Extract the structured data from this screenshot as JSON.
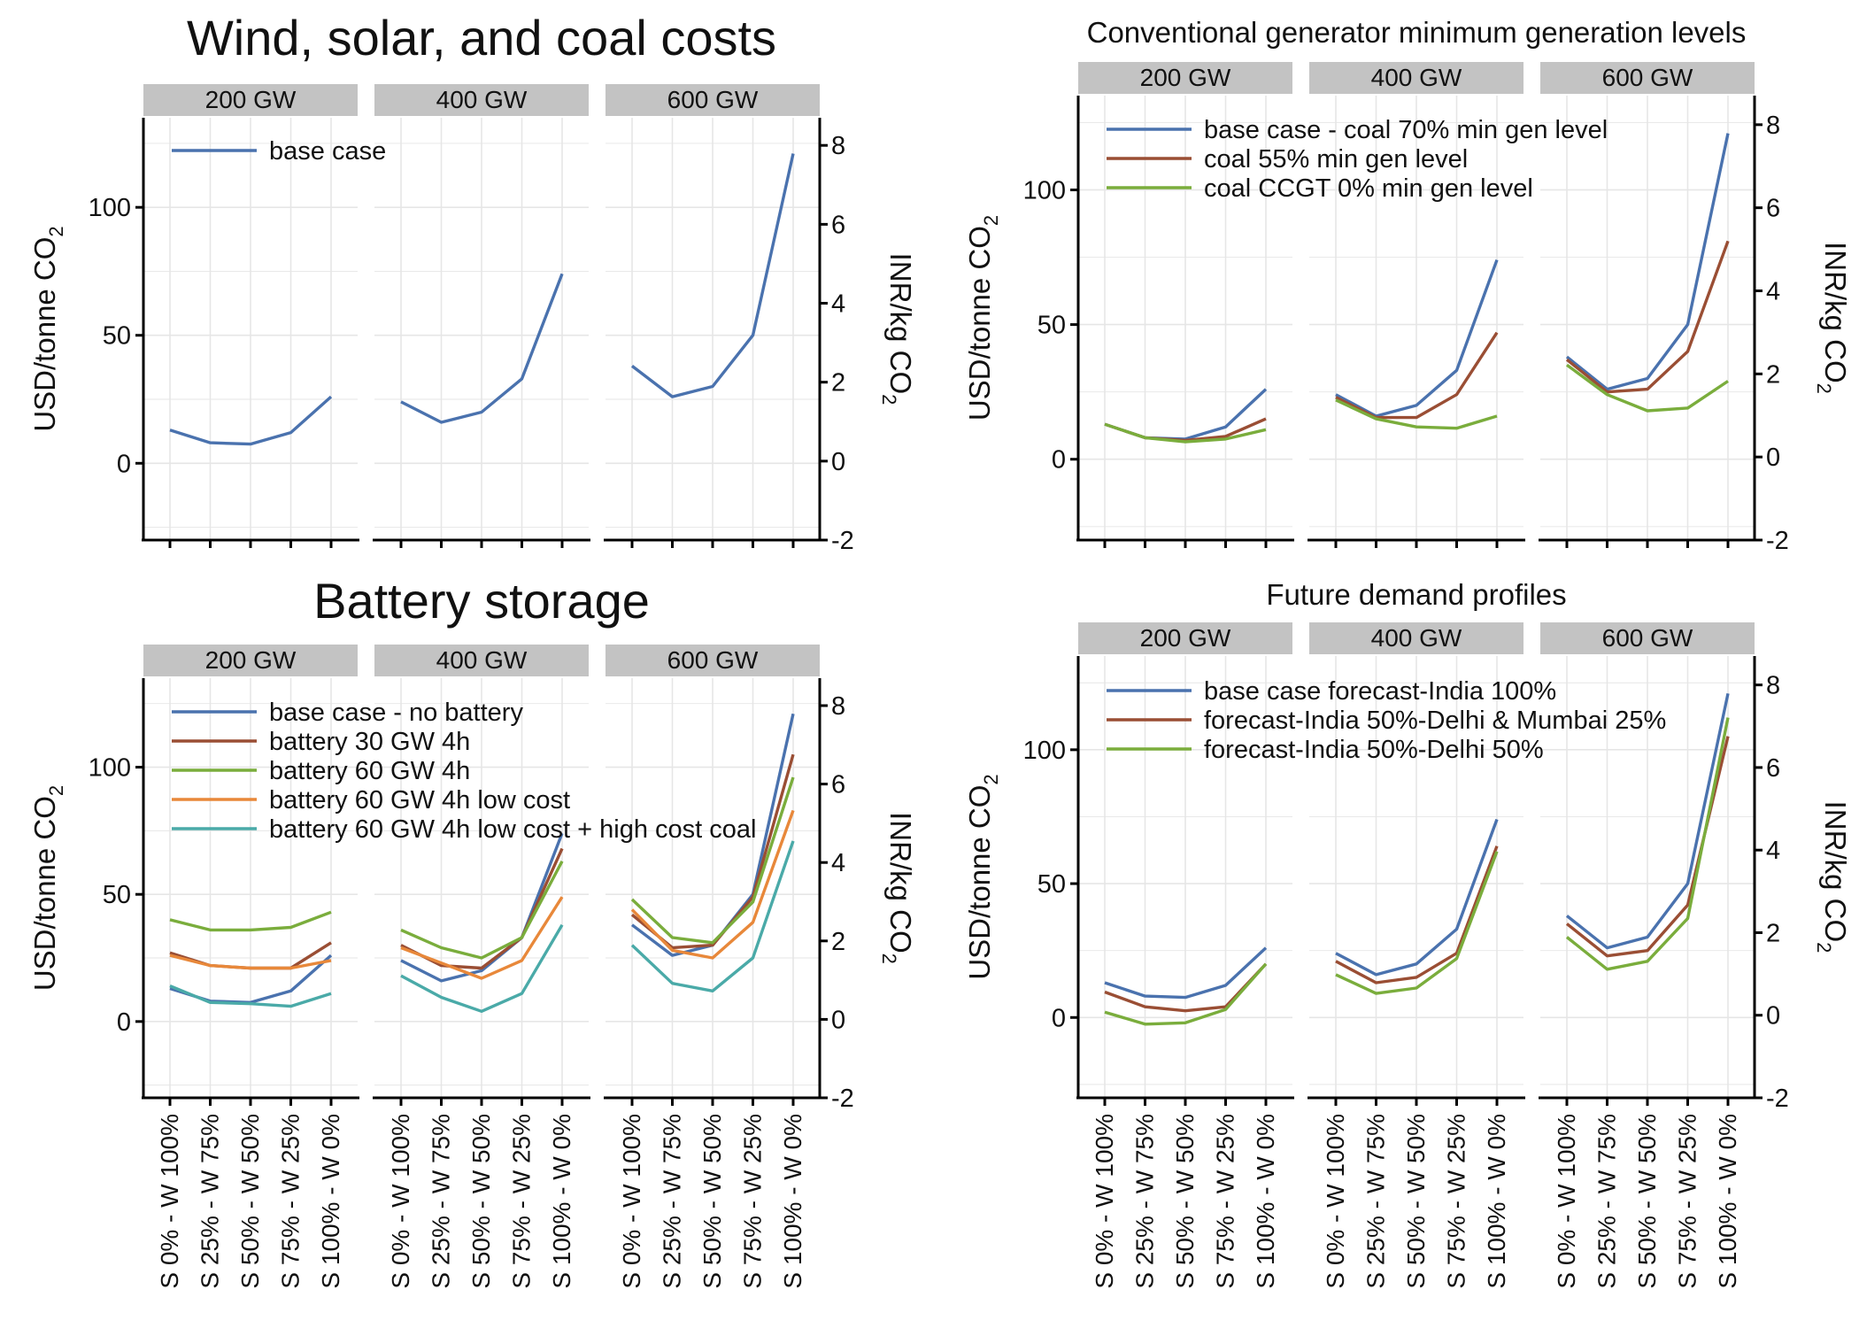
{
  "facet_labels": [
    "200 GW",
    "400 GW",
    "600 GW"
  ],
  "x_tick_labels": [
    "S 0% - W 100%",
    "S 25% - W 75%",
    "S 50% - W 50%",
    "S 75% - W 25%",
    "S 100% - W 0%"
  ],
  "left_axis_label_main": "USD/tonne CO",
  "left_axis_label_sub": "2",
  "right_axis_label_main": "INR/kg CO",
  "right_axis_label_sub": "2",
  "colors": {
    "blue": "#4a72ae",
    "brown": "#9a4e34",
    "green": "#7aad3c",
    "orange": "#e8883a",
    "teal": "#4aaaa8",
    "strip": "#c3c3c3",
    "grid": "#e6e6e6"
  },
  "chart_data": [
    {
      "type": "line",
      "title": "Wind, solar, and coal costs",
      "ylim": [
        -30,
        135
      ],
      "y2lim": [
        -2,
        8.7
      ],
      "y_ticks": [
        0,
        50,
        100
      ],
      "y2_ticks": [
        -2,
        0,
        2,
        4,
        6,
        8
      ],
      "show_x_tick_labels": false,
      "series": [
        {
          "name": "base case",
          "color": "#4a72ae",
          "values": [
            [
              13,
              8,
              7.5,
              12,
              26
            ],
            [
              24,
              16,
              20,
              33,
              74
            ],
            [
              38,
              26,
              30,
              50,
              121
            ]
          ]
        }
      ]
    },
    {
      "type": "line",
      "title": "Conventional generator minimum generation levels",
      "ylim": [
        -30,
        135
      ],
      "y2lim": [
        -2,
        8.7
      ],
      "y_ticks": [
        0,
        50,
        100
      ],
      "y2_ticks": [
        -2,
        0,
        2,
        4,
        6,
        8
      ],
      "show_x_tick_labels": false,
      "series": [
        {
          "name": "base case - coal 70% min gen level",
          "color": "#4a72ae",
          "values": [
            [
              13,
              8,
              7.5,
              12,
              26
            ],
            [
              24,
              16,
              20,
              33,
              74
            ],
            [
              38,
              26,
              30,
              50,
              121
            ]
          ]
        },
        {
          "name": "coal 55% min gen level",
          "color": "#9a4e34",
          "values": [
            [
              13,
              8,
              7,
              8.5,
              15
            ],
            [
              23,
              15.5,
              15.5,
              24,
              47
            ],
            [
              37,
              25,
              26,
              40,
              81
            ]
          ]
        },
        {
          "name": "coal CCGT 0% min gen level",
          "color": "#7aad3c",
          "values": [
            [
              13,
              8,
              6.5,
              7.5,
              11
            ],
            [
              22,
              15,
              12,
              11.5,
              16
            ],
            [
              35,
              24,
              18,
              19,
              29
            ]
          ]
        }
      ]
    },
    {
      "type": "line",
      "title": "Battery storage",
      "ylim": [
        -30,
        135
      ],
      "y2lim": [
        -2,
        8.7
      ],
      "y_ticks": [
        0,
        50,
        100
      ],
      "y2_ticks": [
        -2,
        0,
        2,
        4,
        6,
        8
      ],
      "show_x_tick_labels": true,
      "series": [
        {
          "name": "base case - no battery",
          "color": "#4a72ae",
          "values": [
            [
              13,
              8,
              7.5,
              12,
              26
            ],
            [
              24,
              16,
              20,
              33,
              74
            ],
            [
              38,
              26,
              30,
              50,
              121
            ]
          ]
        },
        {
          "name": "battery 30 GW 4h",
          "color": "#9a4e34",
          "values": [
            [
              27,
              22,
              21,
              21,
              31
            ],
            [
              30,
              22,
              21,
              33,
              68
            ],
            [
              42,
              29,
              30,
              49,
              105
            ]
          ]
        },
        {
          "name": "battery 60 GW 4h",
          "color": "#7aad3c",
          "values": [
            [
              40,
              36,
              36,
              37,
              43
            ],
            [
              36,
              29,
              25,
              33,
              63
            ],
            [
              48,
              33,
              31,
              47,
              96
            ]
          ]
        },
        {
          "name": "battery 60 GW 4h low cost",
          "color": "#e8883a",
          "values": [
            [
              26,
              22,
              21,
              21,
              24
            ],
            [
              29,
              23,
              17,
              24,
              49
            ],
            [
              44,
              28,
              25,
              39,
              83
            ]
          ]
        },
        {
          "name": "battery 60 GW 4h low cost + high cost coal",
          "color": "#4aaaa8",
          "values": [
            [
              14,
              7.5,
              7,
              6,
              11
            ],
            [
              18,
              9.5,
              4,
              11,
              38
            ],
            [
              30,
              15,
              12,
              25,
              71
            ]
          ]
        }
      ]
    },
    {
      "type": "line",
      "title": "Future demand profiles",
      "ylim": [
        -30,
        135
      ],
      "y2lim": [
        -2,
        8.7
      ],
      "y_ticks": [
        0,
        50,
        100
      ],
      "y2_ticks": [
        -2,
        0,
        2,
        4,
        6,
        8
      ],
      "show_x_tick_labels": true,
      "series": [
        {
          "name": "base case forecast-India 100%",
          "color": "#4a72ae",
          "values": [
            [
              13,
              8,
              7.5,
              12,
              26
            ],
            [
              24,
              16,
              20,
              33,
              74
            ],
            [
              38,
              26,
              30,
              50,
              121
            ]
          ]
        },
        {
          "name": "forecast-India 50%-Delhi & Mumbai 25%",
          "color": "#9a4e34",
          "values": [
            [
              9.5,
              4,
              2.5,
              4,
              20
            ],
            [
              21,
              13,
              15,
              24,
              64
            ],
            [
              35,
              23,
              25,
              42,
              105
            ]
          ]
        },
        {
          "name": "forecast-India 50%-Delhi 50%",
          "color": "#7aad3c",
          "values": [
            [
              2,
              -2.5,
              -2,
              3,
              20
            ],
            [
              16,
              9,
              11,
              22,
              62
            ],
            [
              30,
              18,
              21,
              37,
              112
            ]
          ]
        }
      ]
    }
  ]
}
